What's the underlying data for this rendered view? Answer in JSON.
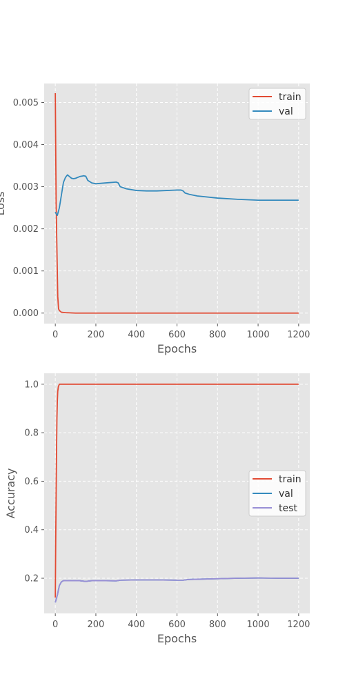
{
  "colors": {
    "panel_bg": "#e5e5e5",
    "grid": "#ffffff",
    "legend_bg": "#ffffff",
    "legend_border": "#cccccc"
  },
  "chart_data": [
    {
      "type": "line",
      "title": "",
      "xlabel": "Epochs",
      "ylabel": "Loss",
      "xlim": [
        -55,
        1255
      ],
      "ylim": [
        -0.00025,
        0.00545
      ],
      "xticks": [
        0,
        200,
        400,
        600,
        800,
        1000,
        1200
      ],
      "xtick_labels": [
        "0",
        "200",
        "400",
        "600",
        "800",
        "1000",
        "1200"
      ],
      "yticks": [
        0,
        0.001,
        0.002,
        0.003,
        0.004,
        0.005
      ],
      "ytick_labels": [
        "0.000",
        "0.001",
        "0.002",
        "0.003",
        "0.004",
        "0.005"
      ],
      "grid": true,
      "legend_position": "top-right",
      "series": [
        {
          "name": "train",
          "color": "#e24a33",
          "x": [
            0,
            4,
            8,
            12,
            16,
            20,
            30,
            50,
            100,
            200,
            400,
            600,
            800,
            1000,
            1200
          ],
          "y": [
            0.00522,
            0.0026,
            0.0015,
            0.0004,
            0.0001,
            6e-05,
            2e-05,
            1e-05,
            0.0,
            0.0,
            0.0,
            0.0,
            0.0,
            0.0,
            0.0
          ]
        },
        {
          "name": "val",
          "color": "#348abd",
          "x": [
            0,
            5,
            10,
            20,
            30,
            40,
            50,
            60,
            70,
            80,
            90,
            100,
            120,
            140,
            150,
            160,
            180,
            200,
            250,
            300,
            310,
            320,
            350,
            400,
            450,
            500,
            550,
            600,
            620,
            630,
            640,
            660,
            700,
            800,
            900,
            1000,
            1100,
            1200
          ],
          "y": [
            0.0024,
            0.00235,
            0.00232,
            0.0025,
            0.0028,
            0.0031,
            0.00322,
            0.00328,
            0.00324,
            0.0032,
            0.00319,
            0.0032,
            0.00324,
            0.00326,
            0.00325,
            0.00315,
            0.00309,
            0.00307,
            0.00309,
            0.00311,
            0.00309,
            0.003,
            0.00295,
            0.00291,
            0.0029,
            0.0029,
            0.00291,
            0.00292,
            0.00292,
            0.0029,
            0.00285,
            0.00282,
            0.00278,
            0.00273,
            0.0027,
            0.00268,
            0.00268,
            0.00268
          ]
        }
      ]
    },
    {
      "type": "line",
      "title": "",
      "xlabel": "Epochs",
      "ylabel": "Accuracy",
      "xlim": [
        -55,
        1255
      ],
      "ylim": [
        0.055,
        1.045
      ],
      "xticks": [
        0,
        200,
        400,
        600,
        800,
        1000,
        1200
      ],
      "xtick_labels": [
        "0",
        "200",
        "400",
        "600",
        "800",
        "1000",
        "1200"
      ],
      "yticks": [
        0.2,
        0.4,
        0.6,
        0.8,
        1.0
      ],
      "ytick_labels": [
        "0.2",
        "0.4",
        "0.6",
        "0.8",
        "1.0"
      ],
      "grid": true,
      "legend_position": "center-right",
      "series": [
        {
          "name": "train",
          "color": "#e24a33",
          "x": [
            0,
            2,
            4,
            6,
            8,
            10,
            12,
            15,
            20,
            30,
            100,
            400,
            800,
            1200
          ],
          "y": [
            0.12,
            0.35,
            0.55,
            0.72,
            0.86,
            0.93,
            0.97,
            0.99,
            1.0,
            1.0,
            1.0,
            1.0,
            1.0,
            1.0
          ]
        },
        {
          "name": "val",
          "color": "#348abd",
          "x": [
            0,
            10,
            20,
            30,
            40,
            50,
            80,
            120,
            150,
            180,
            200,
            250,
            300,
            320,
            400,
            500,
            600,
            630,
            660,
            700,
            800,
            900,
            1000,
            1100,
            1200
          ],
          "y": [
            0.1,
            0.13,
            0.17,
            0.185,
            0.19,
            0.19,
            0.19,
            0.19,
            0.187,
            0.19,
            0.19,
            0.19,
            0.189,
            0.192,
            0.193,
            0.193,
            0.192,
            0.192,
            0.195,
            0.196,
            0.198,
            0.2,
            0.201,
            0.2,
            0.2
          ]
        },
        {
          "name": "test",
          "color": "#988ed5",
          "x": [
            0,
            10,
            20,
            30,
            40,
            50,
            80,
            120,
            150,
            180,
            200,
            250,
            300,
            320,
            400,
            500,
            600,
            630,
            660,
            700,
            800,
            900,
            1000,
            1100,
            1200
          ],
          "y": [
            0.1,
            0.13,
            0.17,
            0.185,
            0.19,
            0.19,
            0.19,
            0.19,
            0.187,
            0.19,
            0.19,
            0.19,
            0.189,
            0.192,
            0.193,
            0.193,
            0.192,
            0.192,
            0.195,
            0.196,
            0.198,
            0.2,
            0.201,
            0.2,
            0.2
          ]
        }
      ]
    }
  ]
}
